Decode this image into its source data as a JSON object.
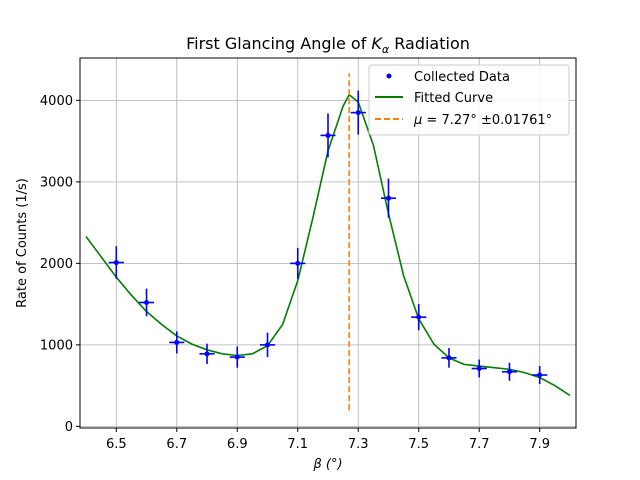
{
  "chart_data": {
    "type": "scatter",
    "title_prefix": "First Glancing Angle of ",
    "title_symbol": "K",
    "title_subscript": "α",
    "title_suffix": " Radiation",
    "xlabel": "β   (°)",
    "ylabel": "Rate of Counts (1/s)",
    "xlim": [
      6.38,
      8.02
    ],
    "ylim": [
      -20,
      4520
    ],
    "xticks": [
      6.5,
      6.7,
      6.9,
      7.1,
      7.3,
      7.5,
      7.7,
      7.9
    ],
    "xtick_labels": [
      "6.5",
      "6.7",
      "6.9",
      "7.1",
      "7.3",
      "7.5",
      "7.7",
      "7.9"
    ],
    "yticks": [
      0,
      1000,
      2000,
      3000,
      4000
    ],
    "ytick_labels": [
      "0",
      "1000",
      "2000",
      "3000",
      "4000"
    ],
    "grid": true,
    "legend_position": "top-right",
    "colors": {
      "data": "#0000ff",
      "fit": "#008000",
      "mu": "#ff7f0e"
    },
    "series": [
      {
        "name": "Collected Data",
        "kind": "errorbar-points",
        "x": [
          6.5,
          6.6,
          6.7,
          6.8,
          6.9,
          7.0,
          7.1,
          7.2,
          7.3,
          7.4,
          7.5,
          7.6,
          7.7,
          7.8,
          7.9
        ],
        "y": [
          2010,
          1520,
          1030,
          890,
          850,
          1000,
          2000,
          3570,
          3850,
          2800,
          1340,
          840,
          710,
          670,
          630
        ],
        "yerr": [
          200,
          170,
          135,
          125,
          130,
          150,
          190,
          270,
          270,
          240,
          160,
          120,
          110,
          110,
          110
        ],
        "xerr": 0.025
      },
      {
        "name": "Fitted Curve",
        "kind": "line",
        "x": [
          6.4,
          6.45,
          6.5,
          6.55,
          6.6,
          6.65,
          6.7,
          6.75,
          6.8,
          6.85,
          6.9,
          6.95,
          7.0,
          7.05,
          7.1,
          7.15,
          7.2,
          7.25,
          7.27,
          7.3,
          7.35,
          7.4,
          7.45,
          7.5,
          7.55,
          7.6,
          7.65,
          7.7,
          7.75,
          7.8,
          7.85,
          7.9,
          7.95,
          8.0
        ],
        "y": [
          2330,
          2080,
          1830,
          1610,
          1410,
          1250,
          1110,
          1010,
          940,
          890,
          870,
          890,
          990,
          1250,
          1790,
          2560,
          3380,
          3930,
          4070,
          3980,
          3450,
          2610,
          1850,
          1320,
          1010,
          840,
          760,
          740,
          720,
          700,
          660,
          600,
          500,
          380
        ]
      },
      {
        "name": "μ = 7.27° ± 0.01761°",
        "kind": "vline",
        "x": 7.27,
        "y_range": [
          200,
          4330
        ]
      }
    ],
    "legend_entries": [
      {
        "label": "Collected Data"
      },
      {
        "label": "Fitted Curve"
      },
      {
        "label_prefix": "μ",
        "label_rest": " = 7.27° ±0.01761°"
      }
    ]
  }
}
